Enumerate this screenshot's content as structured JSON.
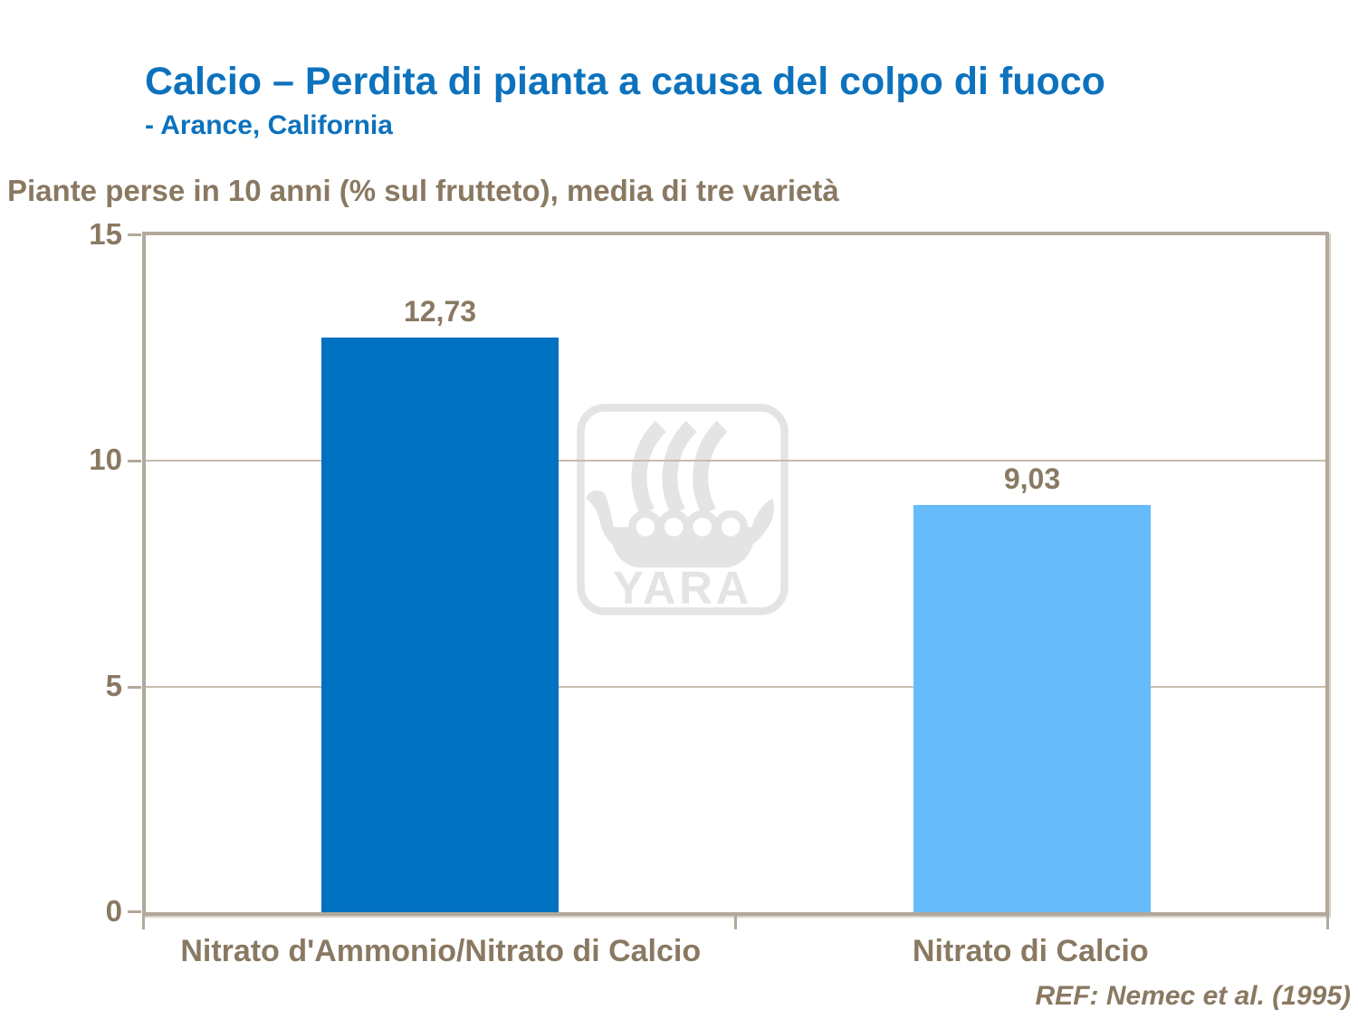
{
  "header": {
    "title": "Calcio – Perdita di pianta a causa del colpo di fuoco",
    "subtitle": "- Arance, California"
  },
  "chart_data": {
    "type": "bar",
    "title": "Piante perse in 10 anni (% sul frutteto), media di tre varietà",
    "categories": [
      "Nitrato d'Ammonio/Nitrato di Calcio",
      "Nitrato di Calcio"
    ],
    "values": [
      12.73,
      9.03
    ],
    "value_labels": [
      "12,73",
      "9,03"
    ],
    "xlabel": "",
    "ylabel": "Piante perse in 10 anni (% sul frutteto), media di tre varietà",
    "ylim": [
      0,
      15
    ],
    "yticks": [
      0,
      5,
      10,
      15
    ],
    "gridlines_at": [
      5,
      10
    ],
    "grid": "horizontal",
    "legend": "none",
    "bar_colors": [
      "#0070C0",
      "#66BBFA"
    ]
  },
  "watermark": {
    "brand": "YARA",
    "icon": "viking-ship-logo",
    "color": "#E4E4E4"
  },
  "footer": {
    "ref": "REF: Nemec et al. (1995)"
  },
  "colors": {
    "title_blue": "#0D72BD",
    "text_brown": "#8A7962",
    "bar_dark_blue": "#0070C0",
    "bar_light_blue": "#66BBFA",
    "plot_frame": "#B3A89B",
    "gridline": "#C6BCAE"
  }
}
